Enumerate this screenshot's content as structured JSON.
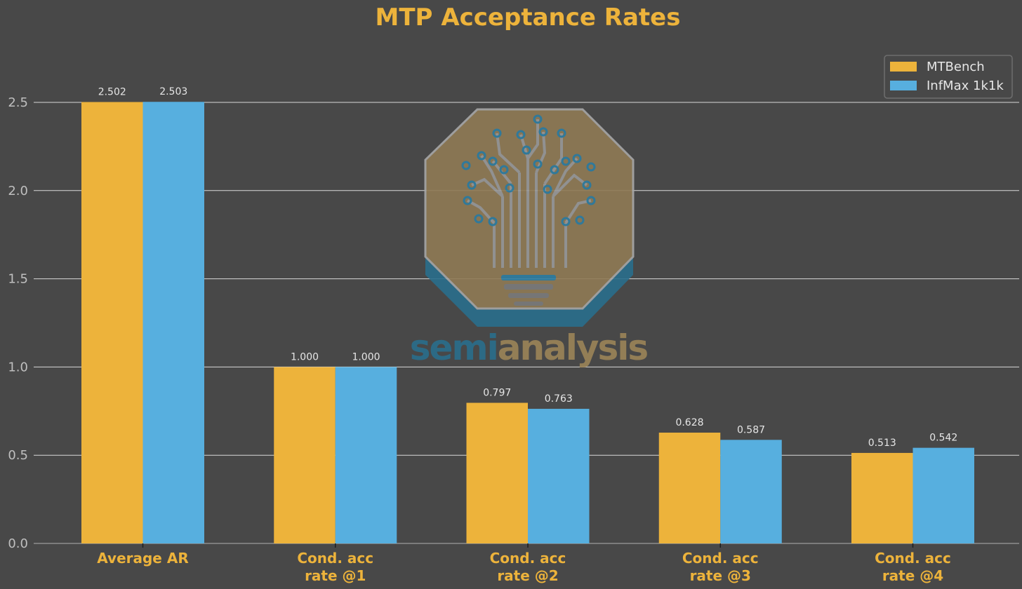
{
  "chart_data": {
    "type": "bar",
    "title": "MTP Acceptance Rates",
    "categories": [
      "Average AR",
      "Cond. acc\nrate @1",
      "Cond. acc\nrate @2",
      "Cond. acc\nrate @3",
      "Cond. acc\nrate @4"
    ],
    "series": [
      {
        "name": "MTBench",
        "values": [
          2.502,
          1.0,
          0.797,
          0.628,
          0.513
        ],
        "labels": [
          "2.502",
          "1.000",
          "0.797",
          "0.628",
          "0.513"
        ],
        "color": "#EDB33B"
      },
      {
        "name": "InfMax 1k1k",
        "values": [
          2.503,
          1.0,
          0.763,
          0.587,
          0.542
        ],
        "labels": [
          "2.503",
          "1.000",
          "0.763",
          "0.587",
          "0.542"
        ],
        "color": "#57AFDF"
      }
    ],
    "yticks": [
      "0.0",
      "0.5",
      "1.0",
      "1.5",
      "2.0",
      "2.5"
    ],
    "ylim": [
      0,
      2.8
    ],
    "xlabel": "",
    "ylabel": "",
    "grid": "horizontal",
    "legend_position": "top-right"
  },
  "watermark": {
    "text_part1": "semi",
    "text_part2": "analysis",
    "color_teal": "#2A6E8C",
    "color_gold": "#9C8458"
  },
  "colors": {
    "background": "#484848",
    "accent": "#EDB33B",
    "grid": "#D9D9D9",
    "axis_text": "#BFBFBF"
  }
}
